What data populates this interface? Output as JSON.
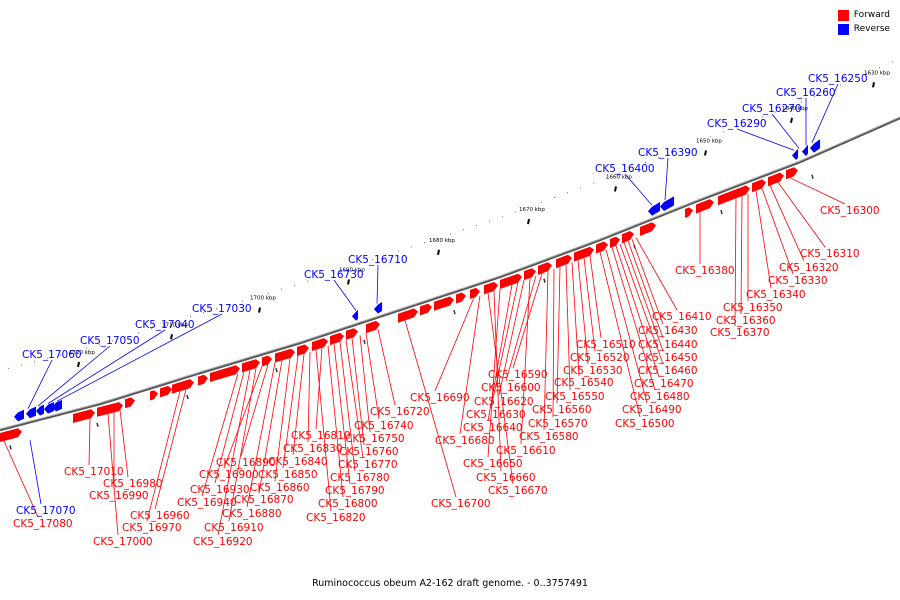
{
  "legend": {
    "forward_label": "Forward",
    "reverse_label": "Reverse",
    "forward_color": "#ff0000",
    "reverse_color": "#0000ff"
  },
  "caption": "Ruminococcus obeum A2-162 draft genome. - 0..3757491",
  "kbp_ticks": [
    "1630 kbp",
    "1640 kbp",
    "1650 kbp",
    "1660 kbp",
    "1670 kbp",
    "1680 kbp",
    "1690 kbp",
    "1700 kbp",
    "1710 kbp",
    "1720 kbp"
  ],
  "reverse_genes": [
    "CK5_16250",
    "CK5_16260",
    "CK5_16270",
    "CK5_16290",
    "CK5_16390",
    "CK5_16400",
    "CK5_16710",
    "CK5_16730",
    "CK5_17030",
    "CK5_17040",
    "CK5_17050",
    "CK5_17060",
    "CK5_17070"
  ],
  "forward_genes": [
    "CK5_16300",
    "CK5_16310",
    "CK5_16320",
    "CK5_16330",
    "CK5_16340",
    "CK5_16350",
    "CK5_16360",
    "CK5_16370",
    "CK5_16380",
    "CK5_16410",
    "CK5_16430",
    "CK5_16440",
    "CK5_16450",
    "CK5_16460",
    "CK5_16470",
    "CK5_16480",
    "CK5_16490",
    "CK5_16500",
    "CK5_16510",
    "CK5_16520",
    "CK5_16530",
    "CK5_16540",
    "CK5_16550",
    "CK5_16560",
    "CK5_16570",
    "CK5_16580",
    "CK5_16590",
    "CK5_16600",
    "CK5_16610",
    "CK5_16620",
    "CK5_16630",
    "CK5_16640",
    "CK5_16650",
    "CK5_16660",
    "CK5_16670",
    "CK5_16680",
    "CK5_16690",
    "CK5_16700",
    "CK5_16720",
    "CK5_16740",
    "CK5_16750",
    "CK5_16760",
    "CK5_16770",
    "CK5_16780",
    "CK5_16790",
    "CK5_16800",
    "CK5_16810",
    "CK5_16820",
    "CK5_16830",
    "CK5_16840",
    "CK5_16850",
    "CK5_16860",
    "CK5_16870",
    "CK5_16880",
    "CK5_16890",
    "CK5_16900",
    "CK5_16910",
    "CK5_16920",
    "CK5_16930",
    "CK5_16940",
    "CK5_16960",
    "CK5_16970",
    "CK5_16980",
    "CK5_16990",
    "CK5_17000",
    "CK5_17010",
    "CK5_17080"
  ]
}
